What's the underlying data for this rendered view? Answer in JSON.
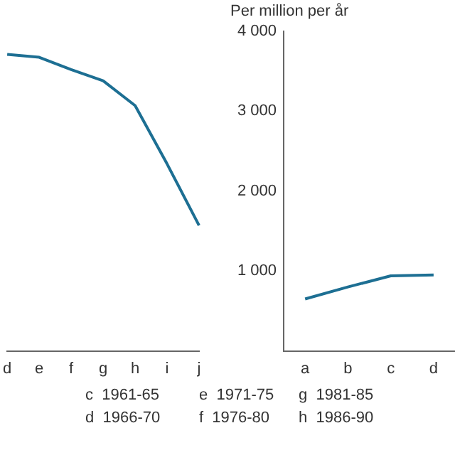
{
  "chart_data": [
    {
      "type": "line",
      "categories": [
        "d",
        "e",
        "f",
        "g",
        "h",
        "i",
        "j"
      ],
      "ylim": [
        0,
        4000
      ],
      "tick_labels": "x",
      "grid": false,
      "legend": false,
      "marker": "none",
      "series": [
        {
          "color": "#1d6f93",
          "values": [
            3710,
            3675,
            3520,
            3380,
            3070,
            2340,
            1570
          ]
        }
      ],
      "annotations": [
        "c  1961-65",
        "d  1966-70",
        "e  1971-75",
        "f  1976-80"
      ]
    },
    {
      "type": "line",
      "categories": [
        "a",
        "b",
        "c",
        "d"
      ],
      "ylabel": "Per million per år",
      "ylim": [
        0,
        4000
      ],
      "yticks": [
        {
          "value": 1000,
          "label": "1 000"
        },
        {
          "value": 2000,
          "label": "2 000"
        },
        {
          "value": 3000,
          "label": "3 000"
        },
        {
          "value": 4000,
          "label": "4 000"
        }
      ],
      "grid": false,
      "legend": false,
      "marker": "none",
      "series": [
        {
          "color": "#1d6f93",
          "values": [
            650,
            800,
            940,
            950
          ]
        }
      ],
      "annotations": [
        "g  1981-85",
        "h  1986-90"
      ]
    }
  ]
}
